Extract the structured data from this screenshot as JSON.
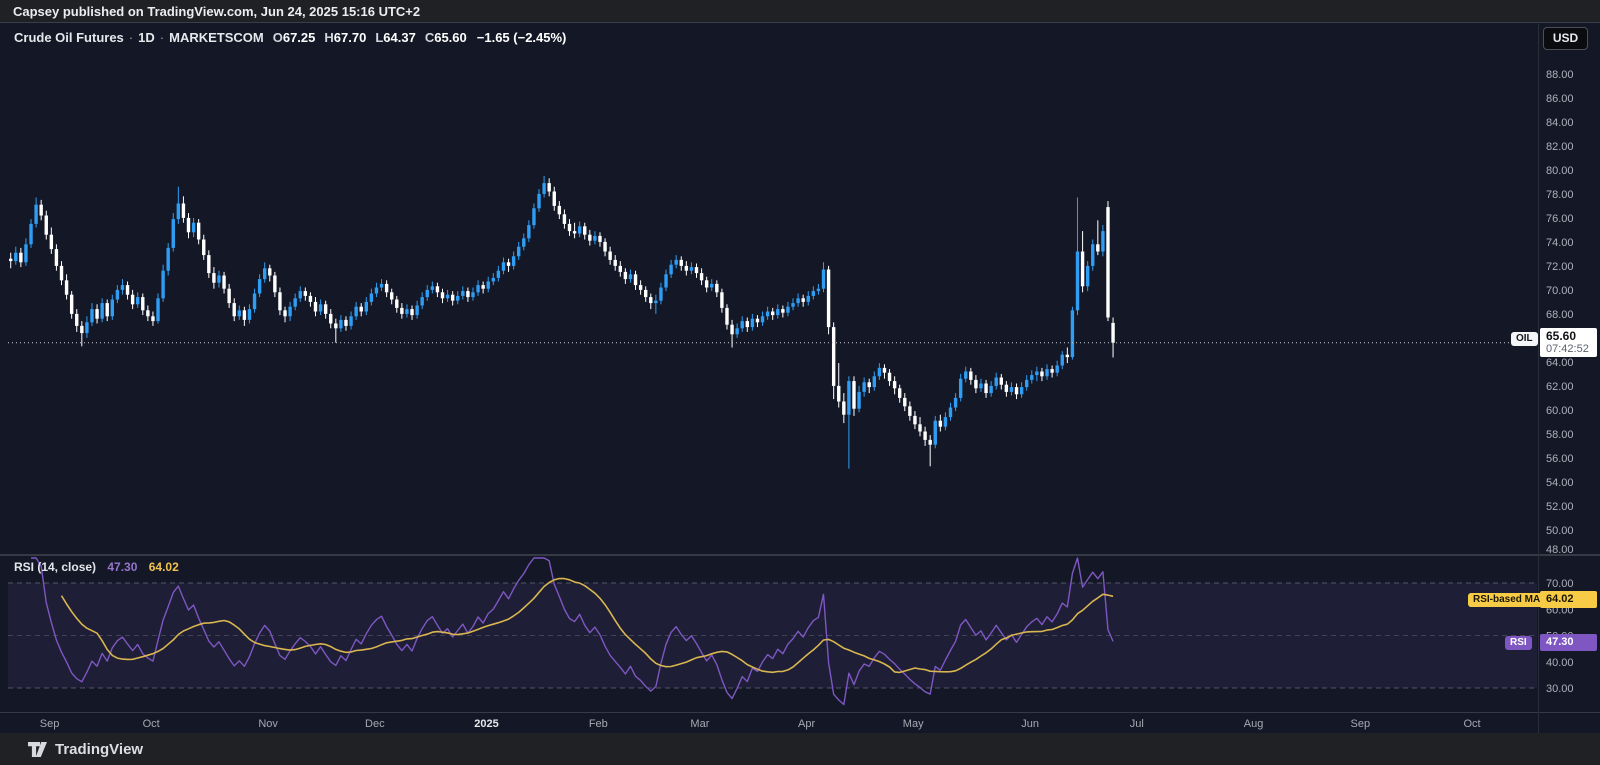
{
  "header": {
    "byline": "Capsey published on TradingView.com, Jun 24, 2025 15:16 UTC+2"
  },
  "currency_button": "USD",
  "legend": {
    "symbol": "Crude Oil Futures",
    "separator": "·",
    "interval": "1D",
    "exchange": "MARKETSCOM",
    "o_label": "O",
    "o": "67.25",
    "h_label": "H",
    "h": "67.70",
    "l_label": "L",
    "l": "64.37",
    "c_label": "C",
    "c": "65.60",
    "change": "−1.65 (−2.45%)"
  },
  "rsi_legend": {
    "title": "RSI (14, close)",
    "rsi": "47.30",
    "ma": "64.02"
  },
  "axis_labels": {
    "symbol_tag": "OIL",
    "price": "65.60",
    "countdown": "07:42:52",
    "ma_tag": "RSI-based MA",
    "ma_value": "64.02",
    "rsi_tag": "RSI",
    "rsi_value": "47.30"
  },
  "footer": {
    "brand": "TradingView"
  },
  "colors": {
    "up": "#2e9df3",
    "down": "#ffffff",
    "rsi_line": "#7e57c2",
    "rsi_ma_line": "#d9b64f",
    "ma_label_bg": "#f7cb45",
    "rsi_label_bg": "#7e57c2",
    "axis_text": "#aeb1bb",
    "band_fill": "rgba(126,87,194,0.10)",
    "level_dash": "#8b8f9b",
    "price_line": "#c9ccd2",
    "separator": "#363a45"
  },
  "chart_data": {
    "type": "candlestick",
    "title": "Crude Oil Futures",
    "interval": "1D",
    "exchange": "MARKETSCOM",
    "currency": "USD",
    "last": {
      "open": 67.25,
      "high": 67.7,
      "low": 64.37,
      "close": 65.6,
      "change": -1.65,
      "change_pct": -2.45
    },
    "current_price": 65.6,
    "countdown": "07:42:52",
    "price_axis": {
      "ticks": [
        88,
        86,
        84,
        82,
        80,
        78,
        76,
        74,
        72,
        70,
        68,
        66,
        64,
        62,
        60,
        58,
        56,
        54,
        52,
        50,
        48
      ]
    },
    "indicator": {
      "name": "RSI",
      "period": 14,
      "source": "close",
      "last_rsi": 47.3,
      "last_ma": 64.02,
      "ma_type": "SMA",
      "ma_length": 14,
      "levels": {
        "upper": 70,
        "middle": 50,
        "lower": 30
      },
      "rsi_axis_ticks": [
        70,
        60,
        50,
        40,
        30
      ]
    },
    "time_axis": [
      {
        "label": "Sep",
        "i": 8
      },
      {
        "label": "Oct",
        "i": 28
      },
      {
        "label": "Nov",
        "i": 51
      },
      {
        "label": "Dec",
        "i": 72
      },
      {
        "label": "2025",
        "i": 94,
        "major": true
      },
      {
        "label": "Feb",
        "i": 116
      },
      {
        "label": "Mar",
        "i": 136
      },
      {
        "label": "Apr",
        "i": 157
      },
      {
        "label": "May",
        "i": 178
      },
      {
        "label": "Jun",
        "i": 201
      },
      {
        "label": "Jul",
        "i": 222
      },
      {
        "label": "Aug",
        "i": 245
      },
      {
        "label": "Sep",
        "i": 266
      },
      {
        "label": "Oct",
        "i": 288
      }
    ],
    "candles": [
      [
        72.6,
        73.1,
        71.8,
        72.4
      ],
      [
        72.4,
        73.6,
        72.1,
        73.1
      ],
      [
        73.1,
        73.5,
        71.9,
        72.3
      ],
      [
        72.3,
        74.3,
        72.0,
        73.8
      ],
      [
        73.8,
        75.9,
        73.5,
        75.5
      ],
      [
        75.5,
        77.7,
        75.2,
        77.1
      ],
      [
        77.1,
        77.5,
        75.8,
        76.2
      ],
      [
        76.2,
        76.6,
        74.2,
        74.6
      ],
      [
        74.6,
        75.2,
        73.0,
        73.4
      ],
      [
        73.4,
        73.8,
        71.6,
        72.0
      ],
      [
        72.0,
        72.4,
        70.4,
        70.8
      ],
      [
        70.8,
        71.3,
        69.2,
        69.6
      ],
      [
        69.6,
        69.9,
        67.6,
        68.0
      ],
      [
        68.0,
        68.4,
        66.5,
        67.0
      ],
      [
        67.0,
        67.4,
        65.3,
        66.4
      ],
      [
        66.4,
        67.8,
        66.0,
        67.3
      ],
      [
        67.3,
        68.9,
        67.0,
        68.4
      ],
      [
        68.4,
        68.8,
        67.2,
        67.6
      ],
      [
        67.6,
        69.3,
        67.3,
        68.9
      ],
      [
        68.9,
        69.2,
        67.4,
        67.8
      ],
      [
        67.8,
        69.6,
        67.5,
        69.2
      ],
      [
        69.2,
        70.4,
        68.9,
        70.0
      ],
      [
        70.0,
        70.9,
        69.6,
        70.4
      ],
      [
        70.4,
        70.7,
        69.2,
        69.6
      ],
      [
        69.6,
        70.0,
        68.4,
        68.8
      ],
      [
        68.8,
        69.8,
        68.5,
        69.4
      ],
      [
        69.4,
        69.7,
        67.9,
        68.3
      ],
      [
        68.3,
        68.7,
        67.4,
        67.8
      ],
      [
        67.8,
        68.2,
        67.0,
        67.4
      ],
      [
        67.4,
        69.7,
        67.2,
        69.3
      ],
      [
        69.3,
        72.1,
        69.0,
        71.6
      ],
      [
        71.6,
        73.9,
        71.2,
        73.5
      ],
      [
        73.5,
        76.4,
        73.2,
        75.9
      ],
      [
        75.9,
        78.6,
        75.5,
        77.2
      ],
      [
        77.2,
        77.8,
        75.6,
        76.0
      ],
      [
        76.0,
        76.4,
        74.3,
        74.8
      ],
      [
        74.8,
        76.0,
        74.4,
        75.6
      ],
      [
        75.6,
        75.9,
        73.8,
        74.2
      ],
      [
        74.2,
        74.6,
        72.5,
        72.9
      ],
      [
        72.9,
        73.3,
        71.0,
        71.4
      ],
      [
        71.4,
        71.9,
        70.1,
        70.6
      ],
      [
        70.6,
        71.6,
        70.2,
        71.2
      ],
      [
        71.2,
        71.5,
        69.7,
        70.1
      ],
      [
        70.1,
        70.5,
        68.5,
        68.9
      ],
      [
        68.9,
        69.3,
        67.4,
        67.8
      ],
      [
        67.8,
        68.7,
        67.5,
        68.3
      ],
      [
        68.3,
        68.6,
        67.0,
        67.5
      ],
      [
        67.5,
        68.8,
        67.2,
        68.4
      ],
      [
        68.4,
        70.1,
        68.1,
        69.7
      ],
      [
        69.7,
        71.3,
        69.4,
        70.9
      ],
      [
        70.9,
        72.3,
        70.6,
        71.8
      ],
      [
        71.8,
        72.1,
        70.7,
        71.2
      ],
      [
        71.2,
        71.5,
        69.4,
        69.8
      ],
      [
        69.8,
        70.2,
        67.9,
        68.3
      ],
      [
        68.3,
        68.6,
        67.3,
        67.8
      ],
      [
        67.8,
        69.0,
        67.4,
        68.6
      ],
      [
        68.6,
        69.7,
        68.3,
        69.3
      ],
      [
        69.3,
        70.3,
        69.0,
        69.9
      ],
      [
        69.9,
        70.2,
        69.1,
        69.5
      ],
      [
        69.5,
        69.8,
        68.6,
        69.0
      ],
      [
        69.0,
        69.4,
        67.8,
        68.2
      ],
      [
        68.2,
        69.2,
        67.9,
        68.8
      ],
      [
        68.8,
        69.1,
        67.6,
        68.0
      ],
      [
        68.0,
        68.4,
        66.8,
        67.2
      ],
      [
        67.2,
        67.6,
        65.6,
        66.8
      ],
      [
        66.8,
        67.9,
        66.5,
        67.5
      ],
      [
        67.5,
        67.8,
        66.6,
        67.0
      ],
      [
        67.0,
        68.2,
        66.7,
        67.8
      ],
      [
        67.8,
        69.0,
        67.5,
        68.6
      ],
      [
        68.6,
        68.9,
        67.8,
        68.2
      ],
      [
        68.2,
        69.4,
        67.9,
        69.0
      ],
      [
        69.0,
        70.1,
        68.7,
        69.7
      ],
      [
        69.7,
        70.6,
        69.4,
        70.2
      ],
      [
        70.2,
        70.9,
        69.9,
        70.5
      ],
      [
        70.5,
        70.8,
        69.4,
        69.8
      ],
      [
        69.8,
        70.1,
        68.8,
        69.2
      ],
      [
        69.2,
        69.5,
        68.1,
        68.5
      ],
      [
        68.5,
        68.9,
        67.6,
        68.0
      ],
      [
        68.0,
        68.8,
        67.7,
        68.4
      ],
      [
        68.4,
        68.7,
        67.5,
        67.9
      ],
      [
        67.9,
        69.1,
        67.6,
        68.7
      ],
      [
        68.7,
        69.8,
        68.4,
        69.4
      ],
      [
        69.4,
        70.4,
        69.1,
        70.0
      ],
      [
        70.0,
        70.7,
        69.7,
        70.3
      ],
      [
        70.3,
        70.6,
        69.4,
        69.8
      ],
      [
        69.8,
        70.1,
        68.9,
        69.3
      ],
      [
        69.3,
        70.0,
        69.0,
        69.6
      ],
      [
        69.6,
        69.9,
        68.7,
        69.1
      ],
      [
        69.1,
        69.9,
        68.8,
        69.5
      ],
      [
        69.5,
        70.3,
        69.2,
        69.9
      ],
      [
        69.9,
        70.2,
        69.0,
        69.4
      ],
      [
        69.4,
        70.2,
        69.1,
        69.8
      ],
      [
        69.8,
        70.8,
        69.5,
        70.4
      ],
      [
        70.4,
        70.7,
        69.7,
        70.1
      ],
      [
        70.1,
        71.1,
        69.8,
        70.7
      ],
      [
        70.7,
        71.4,
        70.4,
        71.0
      ],
      [
        71.0,
        72.0,
        70.7,
        71.6
      ],
      [
        71.6,
        72.7,
        71.3,
        72.3
      ],
      [
        72.3,
        72.6,
        71.5,
        72.0
      ],
      [
        72.0,
        73.2,
        71.7,
        72.8
      ],
      [
        72.8,
        74.0,
        72.5,
        73.6
      ],
      [
        73.6,
        74.7,
        73.3,
        74.3
      ],
      [
        74.3,
        75.8,
        74.0,
        75.4
      ],
      [
        75.4,
        77.2,
        75.1,
        76.8
      ],
      [
        76.8,
        78.4,
        76.5,
        78.0
      ],
      [
        78.0,
        79.5,
        77.7,
        78.9
      ],
      [
        78.9,
        79.3,
        77.8,
        78.2
      ],
      [
        78.2,
        78.6,
        76.6,
        77.0
      ],
      [
        77.0,
        77.4,
        75.9,
        76.3
      ],
      [
        76.3,
        76.7,
        75.1,
        75.5
      ],
      [
        75.5,
        75.9,
        74.5,
        74.9
      ],
      [
        74.9,
        75.6,
        74.3,
        74.7
      ],
      [
        74.7,
        75.7,
        74.4,
        75.3
      ],
      [
        75.3,
        75.6,
        74.2,
        74.6
      ],
      [
        74.6,
        75.0,
        73.7,
        74.1
      ],
      [
        74.1,
        74.9,
        73.8,
        74.5
      ],
      [
        74.5,
        74.8,
        73.6,
        74.0
      ],
      [
        74.0,
        74.3,
        72.8,
        73.2
      ],
      [
        73.2,
        73.6,
        72.1,
        72.5
      ],
      [
        72.5,
        72.9,
        71.6,
        72.0
      ],
      [
        72.0,
        72.4,
        71.1,
        71.5
      ],
      [
        71.5,
        71.8,
        70.5,
        70.9
      ],
      [
        70.9,
        71.7,
        70.6,
        71.3
      ],
      [
        71.3,
        71.6,
        70.0,
        70.4
      ],
      [
        70.4,
        70.8,
        69.6,
        70.0
      ],
      [
        70.0,
        70.3,
        69.0,
        69.4
      ],
      [
        69.4,
        69.7,
        68.4,
        68.9
      ],
      [
        68.9,
        69.6,
        68.0,
        69.1
      ],
      [
        69.1,
        70.6,
        68.8,
        70.2
      ],
      [
        70.2,
        71.7,
        69.9,
        71.3
      ],
      [
        71.3,
        72.5,
        71.0,
        72.1
      ],
      [
        72.1,
        72.9,
        71.8,
        72.5
      ],
      [
        72.5,
        72.8,
        71.6,
        72.0
      ],
      [
        72.0,
        72.4,
        71.2,
        71.6
      ],
      [
        71.6,
        72.3,
        71.3,
        71.9
      ],
      [
        71.9,
        72.2,
        71.0,
        71.4
      ],
      [
        71.4,
        71.8,
        70.4,
        70.8
      ],
      [
        70.8,
        71.1,
        69.8,
        70.2
      ],
      [
        70.2,
        70.9,
        69.9,
        70.5
      ],
      [
        70.5,
        70.8,
        69.4,
        69.8
      ],
      [
        69.8,
        70.1,
        68.1,
        68.5
      ],
      [
        68.5,
        68.8,
        66.7,
        67.1
      ],
      [
        67.1,
        67.5,
        65.2,
        66.3
      ],
      [
        66.3,
        67.2,
        66.0,
        66.8
      ],
      [
        66.8,
        67.8,
        66.5,
        67.4
      ],
      [
        67.4,
        67.7,
        66.5,
        66.9
      ],
      [
        66.9,
        68.0,
        66.6,
        67.6
      ],
      [
        67.6,
        67.9,
        66.9,
        67.3
      ],
      [
        67.3,
        68.2,
        67.0,
        67.8
      ],
      [
        67.8,
        68.6,
        67.5,
        68.2
      ],
      [
        68.2,
        68.5,
        67.5,
        67.9
      ],
      [
        67.9,
        68.8,
        67.6,
        68.4
      ],
      [
        68.4,
        68.7,
        67.7,
        68.1
      ],
      [
        68.1,
        69.0,
        67.8,
        68.6
      ],
      [
        68.6,
        69.3,
        68.3,
        68.9
      ],
      [
        68.9,
        69.7,
        68.6,
        69.3
      ],
      [
        69.3,
        69.6,
        68.6,
        69.0
      ],
      [
        69.0,
        69.9,
        68.7,
        69.5
      ],
      [
        69.5,
        70.3,
        69.2,
        69.9
      ],
      [
        69.9,
        70.5,
        69.6,
        70.1
      ],
      [
        70.1,
        72.3,
        69.8,
        71.7
      ],
      [
        71.7,
        72.0,
        66.3,
        66.9
      ],
      [
        66.9,
        67.3,
        60.9,
        62.0
      ],
      [
        62.0,
        63.9,
        60.2,
        60.7
      ],
      [
        60.7,
        61.4,
        58.9,
        59.6
      ],
      [
        59.6,
        62.8,
        55.1,
        62.4
      ],
      [
        62.4,
        62.8,
        59.5,
        60.1
      ],
      [
        60.1,
        62.0,
        59.8,
        61.5
      ],
      [
        61.5,
        62.7,
        61.1,
        62.3
      ],
      [
        62.3,
        62.6,
        61.4,
        61.9
      ],
      [
        61.9,
        63.2,
        61.6,
        62.8
      ],
      [
        62.8,
        63.9,
        62.5,
        63.5
      ],
      [
        63.5,
        63.8,
        62.6,
        63.1
      ],
      [
        63.1,
        63.4,
        62.0,
        62.4
      ],
      [
        62.4,
        62.8,
        61.3,
        61.8
      ],
      [
        61.8,
        62.1,
        60.6,
        61.0
      ],
      [
        61.0,
        61.4,
        59.9,
        60.3
      ],
      [
        60.3,
        60.7,
        59.1,
        59.5
      ],
      [
        59.5,
        59.9,
        58.4,
        58.8
      ],
      [
        58.8,
        59.4,
        57.8,
        58.2
      ],
      [
        58.2,
        58.6,
        57.0,
        57.5
      ],
      [
        57.5,
        57.9,
        55.3,
        57.1
      ],
      [
        57.1,
        59.5,
        56.8,
        59.1
      ],
      [
        59.1,
        59.6,
        58.2,
        58.6
      ],
      [
        58.6,
        59.8,
        58.3,
        59.4
      ],
      [
        59.4,
        60.6,
        59.1,
        60.2
      ],
      [
        60.2,
        61.4,
        59.9,
        61.0
      ],
      [
        61.0,
        63.0,
        60.7,
        62.6
      ],
      [
        62.6,
        63.6,
        62.3,
        63.2
      ],
      [
        63.2,
        63.5,
        62.1,
        62.5
      ],
      [
        62.5,
        62.9,
        61.4,
        61.8
      ],
      [
        61.8,
        62.6,
        61.5,
        62.2
      ],
      [
        62.2,
        62.5,
        61.0,
        61.4
      ],
      [
        61.4,
        62.4,
        61.1,
        62.0
      ],
      [
        62.0,
        63.1,
        61.7,
        62.7
      ],
      [
        62.7,
        63.0,
        61.7,
        62.1
      ],
      [
        62.1,
        62.4,
        61.1,
        61.5
      ],
      [
        61.5,
        62.3,
        61.2,
        61.9
      ],
      [
        61.9,
        62.2,
        60.9,
        61.3
      ],
      [
        61.3,
        62.3,
        61.0,
        61.9
      ],
      [
        61.9,
        62.9,
        61.6,
        62.5
      ],
      [
        62.5,
        63.3,
        62.2,
        62.9
      ],
      [
        62.9,
        63.6,
        62.4,
        63.2
      ],
      [
        63.2,
        63.5,
        62.4,
        62.8
      ],
      [
        62.8,
        63.8,
        62.5,
        63.4
      ],
      [
        63.4,
        63.7,
        62.7,
        63.1
      ],
      [
        63.1,
        64.1,
        62.8,
        63.7
      ],
      [
        63.7,
        64.9,
        63.4,
        64.6
      ],
      [
        64.6,
        65.2,
        63.9,
        64.4
      ],
      [
        64.4,
        68.6,
        64.2,
        68.3
      ],
      [
        68.3,
        77.7,
        67.9,
        73.2
      ],
      [
        73.2,
        74.9,
        69.8,
        70.3
      ],
      [
        70.3,
        72.4,
        69.9,
        72.0
      ],
      [
        72.0,
        74.2,
        71.6,
        73.8
      ],
      [
        73.8,
        75.8,
        72.9,
        73.2
      ],
      [
        73.2,
        75.4,
        72.8,
        74.9
      ],
      [
        76.9,
        77.4,
        67.4,
        67.7
      ],
      [
        67.25,
        67.7,
        64.37,
        65.6
      ]
    ]
  }
}
